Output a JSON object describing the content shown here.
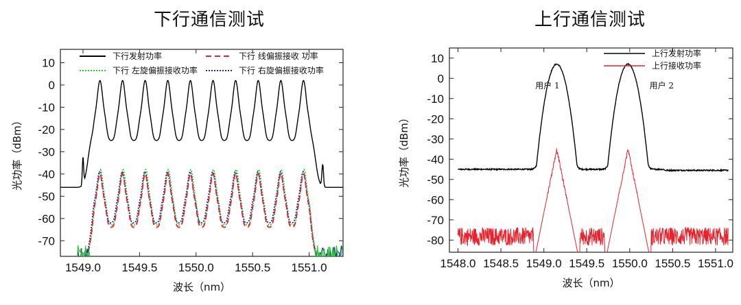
{
  "titles": {
    "left": "下行通信测试",
    "right": "上行通信测试"
  },
  "chart_data": [
    {
      "type": "line",
      "title": "下行通信测试",
      "xlabel": "波长（nm）",
      "ylabel": "光功率（dBm）",
      "xlim": [
        1548.8,
        1551.3
      ],
      "ylim": [
        -77,
        16
      ],
      "xticks": [
        "1549.0",
        "1549.5",
        "1550.0",
        "1550.5",
        "1551.0"
      ],
      "yticks": [
        "10",
        "0",
        "-10",
        "-20",
        "-30",
        "-40",
        "-50",
        "-60",
        "-70"
      ],
      "legend": {
        "placement": "top",
        "items": [
          {
            "label": "下行发射功率",
            "color": "#000000",
            "style": "solid"
          },
          {
            "label": "下行 线偏振接收 功率",
            "color": "#e8212a",
            "style": "dashed"
          },
          {
            "label": "下行 左旋偏振接收功率",
            "color": "#2ecc2e",
            "style": "dotted"
          },
          {
            "label": "下行 右旋偏振接收功率",
            "color": "#1f2fa8",
            "style": "dotted"
          }
        ]
      },
      "series": [
        {
          "name": "下行发射功率",
          "color": "#000000",
          "peaks_x": [
            1549.15,
            1549.35,
            1549.55,
            1549.75,
            1549.95,
            1550.15,
            1550.35,
            1550.55,
            1550.75,
            1550.95
          ],
          "peak_y": 2,
          "valley_y": -25,
          "outside_y": -46
        },
        {
          "name": "下行 线偏振接收 功率",
          "color": "#e8212a",
          "peaks_x": "same",
          "peak_y": -40,
          "valley_y": -64
        },
        {
          "name": "下行 左旋偏振接收功率",
          "color": "#2ecc2e",
          "peaks_x": "same",
          "peak_y": -38,
          "valley_y": -63
        },
        {
          "name": "下行 右旋偏振接收功率",
          "color": "#1f2fa8",
          "peaks_x": "same",
          "peak_y": -39,
          "valley_y": -62
        }
      ]
    },
    {
      "type": "line",
      "title": "上行通信测试",
      "xlabel": "波长（nm）",
      "ylabel": "光功率（dBm）",
      "xlim": [
        1547.9,
        1551.2
      ],
      "ylim": [
        -86,
        15
      ],
      "xticks": [
        "1548.0",
        "1548.5",
        "1549.0",
        "1549.5",
        "1550.0",
        "1550.5",
        "1551.0"
      ],
      "yticks": [
        "10",
        "0",
        "-10",
        "-20",
        "-30",
        "-40",
        "-50",
        "-60",
        "-70",
        "-80"
      ],
      "legend": {
        "placement": "top-right",
        "items": [
          {
            "label": "上行发射功率",
            "color": "#000000",
            "style": "solid"
          },
          {
            "label": "上行接收功率",
            "color": "#e8212a",
            "style": "solid"
          }
        ]
      },
      "annotations": [
        {
          "text": "用户 1",
          "x": 1548.9,
          "y": -5
        },
        {
          "text": "用户 2",
          "x": 1550.23,
          "y": -5
        }
      ],
      "series": [
        {
          "name": "上行发射功率",
          "color": "#000000",
          "peaks_x": [
            1549.15,
            1549.98
          ],
          "peak_y": 7,
          "baseline_y": -45
        },
        {
          "name": "上行接收功率",
          "color": "#e8212a",
          "peaks_x": [
            1549.15,
            1549.98
          ],
          "peak_y": -35,
          "noise_floor_y": -80
        }
      ]
    }
  ]
}
